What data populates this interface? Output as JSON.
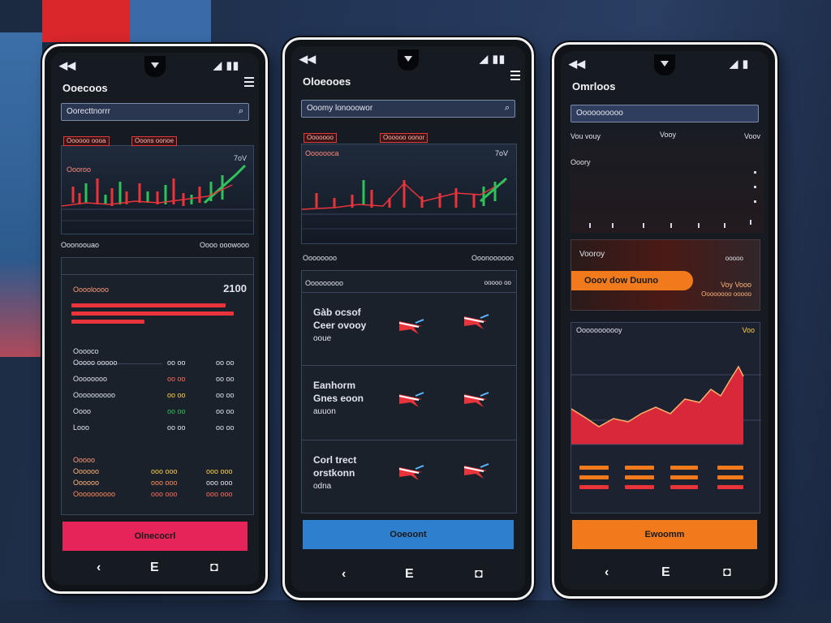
{
  "colors": {
    "accent_red": "#e8343a",
    "accent_pink": "#e6245a",
    "accent_blue": "#2f7fcf",
    "accent_orange": "#f07a1c",
    "green": "#2fc25a",
    "panel": "#161a21"
  },
  "phone1": {
    "status_left": "◀◀",
    "status_right": "◢ ▮▮",
    "title": "Ooecoos",
    "search_text": "Oorecttnorrr",
    "search_icon": "magnifier-icon",
    "chart_tag1": "Oooooo oooa",
    "chart_tag2": "Ooons oonoe",
    "chart_corner": "7oV",
    "chart_label": "Oooroo",
    "footer_left": "Ooonoouao",
    "footer_right": "Oooo ooowooo",
    "card_title": "Ooooloooo",
    "card_value": "2100",
    "list_header": "Ooooco",
    "rows": [
      {
        "name": "Ooooo ooooo",
        "v1": "oo  oo",
        "v2": "oo  oo"
      },
      {
        "name": "Oooooooo",
        "v1": "oo  oo",
        "v2": "oo  oo"
      },
      {
        "name": "Oooooooooo",
        "v1": "oo  oo",
        "v2": "oo  oo"
      },
      {
        "name": "Oooo",
        "v1": "oo  oo",
        "v2": "oo  oo"
      },
      {
        "name": "Looo",
        "v1": "oo  oo",
        "v2": "oo  oo"
      }
    ],
    "sub_header": "Ooooo",
    "sub_rows": [
      {
        "name": "Oooooo",
        "v1": "ooo ooo",
        "v2": "ooo ooo"
      },
      {
        "name": "Oooooo",
        "v1": "ooo ooo",
        "v2": "ooo ooo"
      },
      {
        "name": "Oooooooooo",
        "v1": "ooo ooo",
        "v2": "ooo ooo"
      }
    ],
    "cta": "Olnecocrl",
    "nav_back": "‹",
    "nav_home": "E",
    "nav_recent": "◘"
  },
  "phone2": {
    "status_left": "◀◀",
    "status_right": "◢ ▮▮",
    "title": "Oloeooes",
    "search_text": "Ooomy lonooowor",
    "chart_tag1": "Ooooooo",
    "chart_tag2": "Oooooo oonor",
    "chart_sub": "Ooooooca",
    "chart_corner": "7oV",
    "footer_left": "Oooooooo",
    "footer_right": "Ooonoooooo",
    "list_title": "Ooooooooo",
    "list_right": "ooooo oo",
    "items": [
      {
        "line1": "Gàb ocsof",
        "line2": "Ceer ovooy",
        "line3": "ooue"
      },
      {
        "line1": "Eanhorm",
        "line2": "Gnes eoon",
        "line3": "auuon"
      },
      {
        "line1": "Corl trect",
        "line2": "orstkonn",
        "line3": "odna"
      }
    ],
    "cta": "Ooeoont",
    "nav_back": "‹",
    "nav_home": "E",
    "nav_recent": "◘"
  },
  "phone3": {
    "status_left": "◀◀",
    "status_right": "◢ ▮",
    "title": "Omrloos",
    "search_text": "Oooooooooo",
    "chart_label1": "Vou vouy",
    "chart_label2": "Vooy",
    "chart_label3": "Voov",
    "chart_label4": "Ooory",
    "promo_title": "Vooroy",
    "promo_text": "Ooov dow Duuno",
    "promo_right1": "ooooo",
    "promo_right2": "Voy Vooo",
    "promo_right3": "Oooooooo ooooo",
    "stats_title": "Ooooooooooy",
    "stats_value": "Voo",
    "cta": "Ewoomm",
    "nav_back": "‹",
    "nav_home": "E",
    "nav_recent": "◘"
  }
}
